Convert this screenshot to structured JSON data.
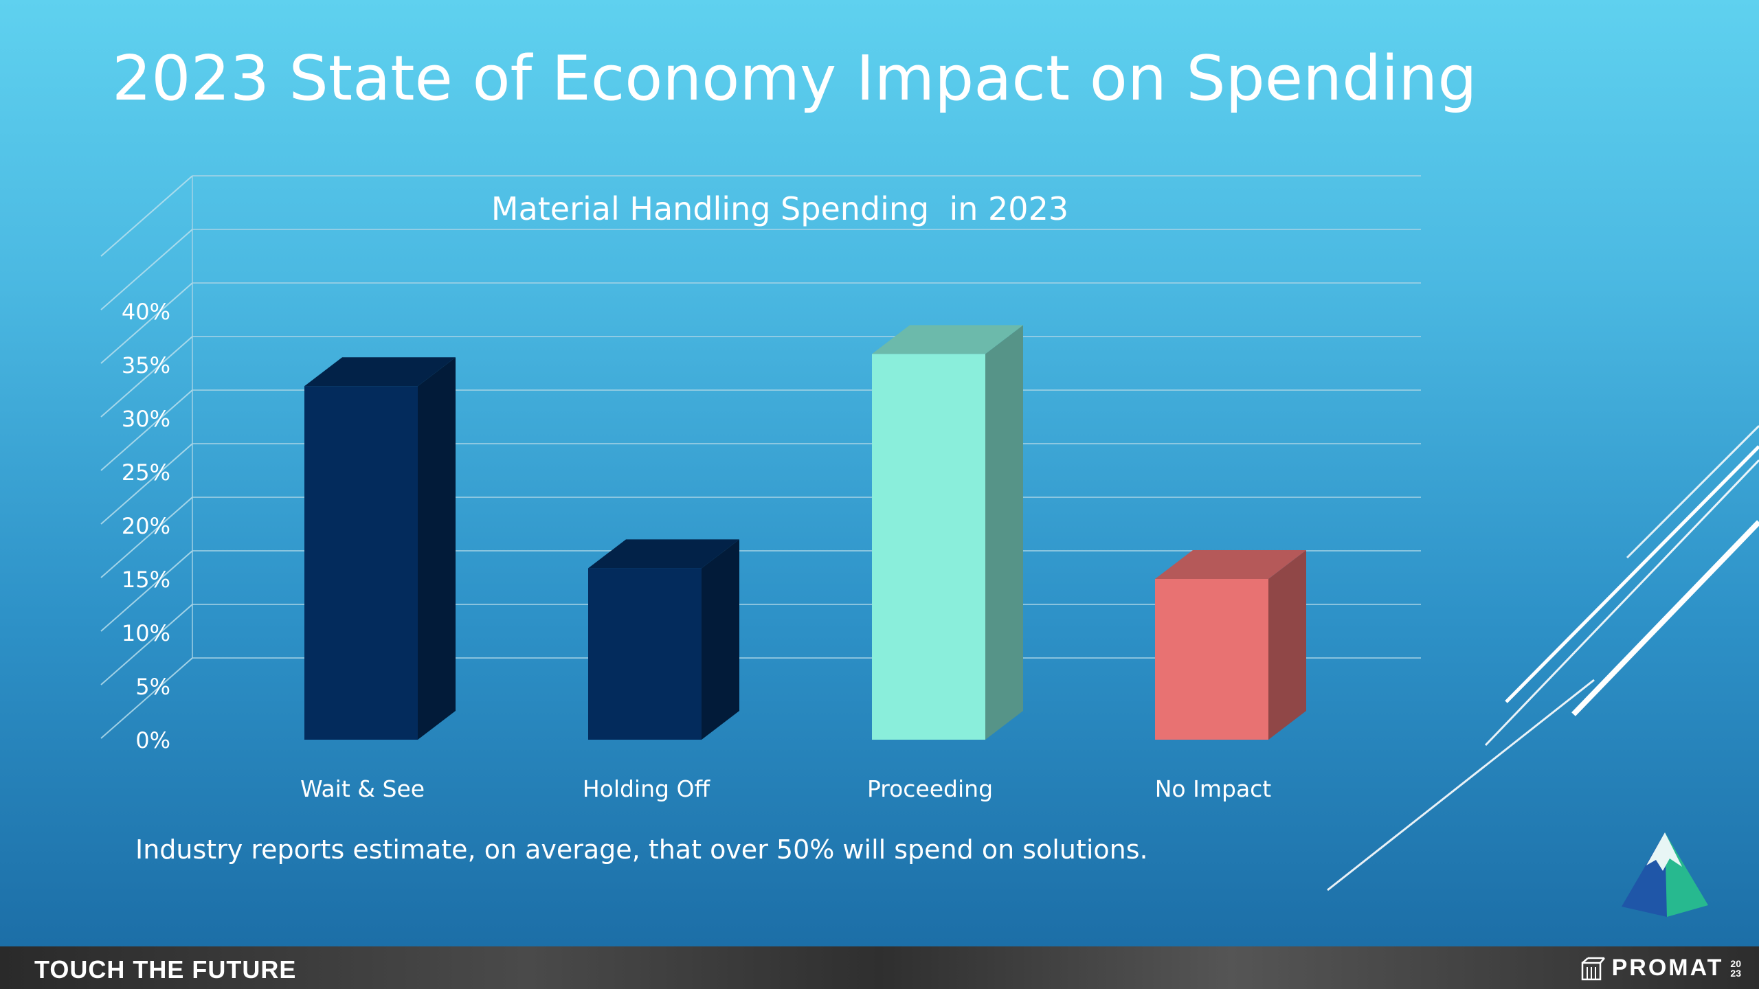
{
  "slide": {
    "title": "2023 State of Economy Impact on Spending",
    "caption": "Industry reports estimate, on average, that over 50% will spend on solutions."
  },
  "footer": {
    "slogan": "TOUCH THE FUTURE",
    "brand": "PROMAT",
    "brand_year_top": "20",
    "brand_year_bottom": "23"
  },
  "colors": {
    "navy": "#032b5c",
    "mint": "#8aeedb",
    "coral": "#e87272"
  },
  "chart_data": {
    "type": "bar",
    "title": "Material Handling Spending  in 2023",
    "categories": [
      "Wait & See",
      "Holding Off",
      "Proceeding",
      "No Impact"
    ],
    "values": [
      33,
      16,
      36,
      15
    ],
    "unit": "%",
    "ylim": [
      0,
      40
    ],
    "yticks": [
      "0%",
      "5%",
      "10%",
      "15%",
      "20%",
      "25%",
      "30%",
      "35%",
      "40%"
    ],
    "bar_colors": [
      "#032b5c",
      "#032b5c",
      "#8aeedb",
      "#e87272"
    ],
    "grid": true,
    "legend": "none",
    "style": "3d"
  }
}
